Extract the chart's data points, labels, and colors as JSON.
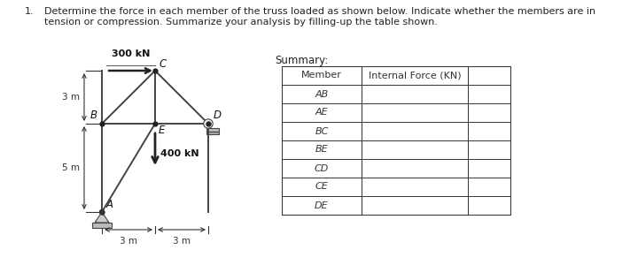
{
  "title_number": "1.",
  "title_text1": "Determine the force in each member of the truss loaded as shown below. Indicate whether the members are in",
  "title_text2": "tension or compression. Summarize your analysis by filling-up the table shown.",
  "load1_label": "300 kN",
  "load2_label": "400 kN",
  "summary_label": "Summary:",
  "table_members": [
    "Member",
    "AB",
    "AE",
    "BC",
    "BE",
    "CD",
    "CE",
    "DE"
  ],
  "table_col2_header": "Internal Force (KN)",
  "bg_color": "#ffffff",
  "truss_color": "#444444",
  "text_color": "#222222",
  "dim_color": "#333333"
}
